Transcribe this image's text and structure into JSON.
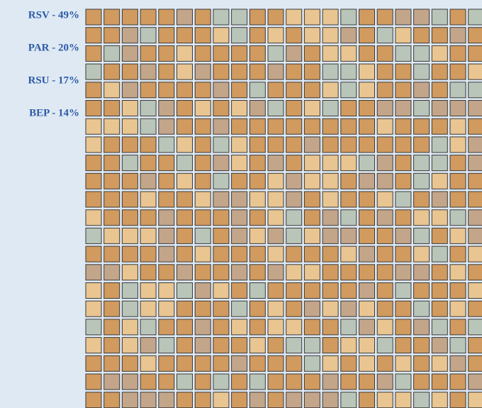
{
  "chart_data": {
    "type": "waffle",
    "values": [
      49,
      20,
      17,
      14
    ],
    "value_labels": [
      "RSV - 49%",
      "PAR - 20%",
      "RSU - 17%",
      "BEP - 14%"
    ],
    "colors": [
      "#d19a5e",
      "#e9c591",
      "#c3a58a",
      "#b9c5b9"
    ]
  }
}
